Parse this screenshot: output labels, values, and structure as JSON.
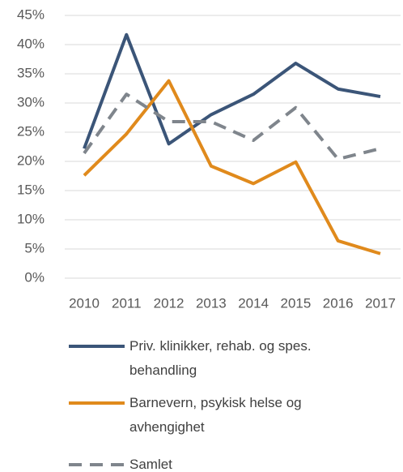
{
  "chart_data": {
    "type": "line",
    "x": [
      "2010",
      "2011",
      "2012",
      "2013",
      "2014",
      "2015",
      "2016",
      "2017"
    ],
    "series": [
      {
        "name": "Priv. klinikker, rehab. og spes. behandling",
        "color": "#3b5578",
        "dash": false,
        "values": [
          22.2,
          41.7,
          23,
          28,
          31.5,
          36.8,
          32.4,
          31.1
        ]
      },
      {
        "name": "Barnevern, psykisk helse og avhengighet",
        "color": "#e08a1c",
        "dash": false,
        "values": [
          17.6,
          24.7,
          33.8,
          19.2,
          16.2,
          19.9,
          6.4,
          4.2
        ]
      },
      {
        "name": "Samlet",
        "color": "#7f858c",
        "dash": true,
        "values": [
          21.4,
          31.5,
          26.8,
          26.8,
          23.6,
          29.2,
          20.4,
          22.2
        ]
      }
    ],
    "ylim": [
      0,
      45
    ],
    "yticks": [
      {
        "value": 0,
        "label": "0%"
      },
      {
        "value": 5,
        "label": "5%"
      },
      {
        "value": 10,
        "label": "10%"
      },
      {
        "value": 15,
        "label": "15%"
      },
      {
        "value": 20,
        "label": "20%"
      },
      {
        "value": 25,
        "label": "25%"
      },
      {
        "value": 30,
        "label": "30%"
      },
      {
        "value": 35,
        "label": "35%"
      },
      {
        "value": 40,
        "label": "40%"
      },
      {
        "value": 45,
        "label": "45%"
      }
    ],
    "grid": true,
    "legend": "bottom"
  }
}
